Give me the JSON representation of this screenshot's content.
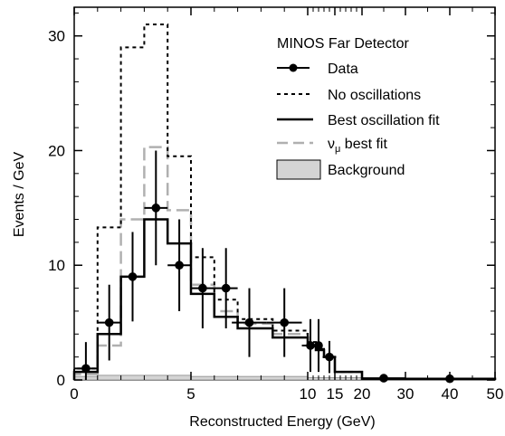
{
  "chart_data": {
    "type": "histogram",
    "title": "",
    "xlabel": "Reconstructed Energy (GeV)",
    "ylabel": "Events / GeV",
    "ylim": [
      0,
      32.5
    ],
    "x_axis_note": "non-linear axis: linear 0-5 GeV then compressed to 50 GeV",
    "x_ticks": [
      {
        "label": "0",
        "value": 0
      },
      {
        "label": "5",
        "value": 5
      },
      {
        "label": "10",
        "value": 10
      },
      {
        "label": "15",
        "value": 15
      },
      {
        "label": "20",
        "value": 20
      },
      {
        "label": "30",
        "value": 30
      },
      {
        "label": "40",
        "value": 40
      },
      {
        "label": "50",
        "value": 50
      }
    ],
    "y_ticks": [
      {
        "label": "0",
        "value": 0
      },
      {
        "label": "10",
        "value": 10
      },
      {
        "label": "20",
        "value": 20
      },
      {
        "label": "30",
        "value": 30
      }
    ],
    "legend": {
      "title": "MINOS Far Detector",
      "placement": "top-right",
      "entries": [
        {
          "name": "Data",
          "style": "points"
        },
        {
          "name": "No oscillations",
          "style": "dotted"
        },
        {
          "name": "Best oscillation fit",
          "style": "solid"
        },
        {
          "name_main": "ν",
          "name_sub": "μ",
          "name_rest": " best fit",
          "style": "dashed-gray"
        },
        {
          "name": "Background",
          "style": "filled-box"
        }
      ]
    },
    "data_points": [
      {
        "x": 0.5,
        "y": 1.0,
        "err": 2.3,
        "xerr": 0.5
      },
      {
        "x": 1.5,
        "y": 5.0,
        "err": 3.3,
        "xerr": 0.5
      },
      {
        "x": 2.5,
        "y": 9.0,
        "err": 3.9,
        "xerr": 0.5
      },
      {
        "x": 3.5,
        "y": 15.0,
        "err": 5.0,
        "xerr": 0.5
      },
      {
        "x": 4.5,
        "y": 10.0,
        "err": 4.0,
        "xerr": 0.5
      },
      {
        "x": 5.5,
        "y": 8.0,
        "err": 3.5,
        "xerr": 0.5
      },
      {
        "x": 6.5,
        "y": 8.0,
        "err": 3.5,
        "xerr": 0.5
      },
      {
        "x": 7.5,
        "y": 5.0,
        "err": 3.0,
        "xerr": 0.75
      },
      {
        "x": 9.0,
        "y": 5.0,
        "err": 3.0,
        "xerr": 0.75
      },
      {
        "x": 10.5,
        "y": 3.0,
        "err": 2.3,
        "xerr": 0.75
      },
      {
        "x": 12.0,
        "y": 3.0,
        "err": 2.3,
        "xerr": 0.75
      },
      {
        "x": 14.0,
        "y": 2.0,
        "err": 1.4,
        "xerr": 1.25
      },
      {
        "x": 25.0,
        "y": 0.15,
        "err": 0.0,
        "xerr": 5.0
      },
      {
        "x": 40.0,
        "y": 0.1,
        "err": 0.0,
        "xerr": 5.0
      }
    ],
    "no_oscillations": {
      "bins": [
        {
          "x0": 0,
          "x1": 1,
          "y": 1.0
        },
        {
          "x0": 1,
          "x1": 2,
          "y": 13.3
        },
        {
          "x0": 2,
          "x1": 3,
          "y": 29.0
        },
        {
          "x0": 3,
          "x1": 4,
          "y": 31.0
        },
        {
          "x0": 4,
          "x1": 5,
          "y": 19.5
        },
        {
          "x0": 5,
          "x1": 6,
          "y": 10.7
        },
        {
          "x0": 6,
          "x1": 7,
          "y": 7.0
        },
        {
          "x0": 7,
          "x1": 8.5,
          "y": 5.3
        },
        {
          "x0": 8.5,
          "x1": 10,
          "y": 4.3
        },
        {
          "x0": 10,
          "x1": 11.5,
          "y": 3.3
        },
        {
          "x0": 11.5,
          "x1": 13,
          "y": 2.7
        },
        {
          "x0": 13,
          "x1": 15,
          "y": 2.0
        },
        {
          "x0": 15,
          "x1": 20,
          "y": 0.7
        },
        {
          "x0": 20,
          "x1": 50,
          "y": 0.1
        }
      ]
    },
    "best_fit": {
      "bins": [
        {
          "x0": 0,
          "x1": 1,
          "y": 0.7
        },
        {
          "x0": 1,
          "x1": 2,
          "y": 4.0
        },
        {
          "x0": 2,
          "x1": 3,
          "y": 9.0
        },
        {
          "x0": 3,
          "x1": 4,
          "y": 14.0
        },
        {
          "x0": 4,
          "x1": 5,
          "y": 11.9
        },
        {
          "x0": 5,
          "x1": 6,
          "y": 7.5
        },
        {
          "x0": 6,
          "x1": 7,
          "y": 5.5
        },
        {
          "x0": 7,
          "x1": 8.5,
          "y": 4.5
        },
        {
          "x0": 8.5,
          "x1": 10,
          "y": 3.7
        },
        {
          "x0": 10,
          "x1": 11.5,
          "y": 3.0
        },
        {
          "x0": 11.5,
          "x1": 13,
          "y": 2.6
        },
        {
          "x0": 13,
          "x1": 15,
          "y": 2.0
        },
        {
          "x0": 15,
          "x1": 20,
          "y": 0.7
        },
        {
          "x0": 20,
          "x1": 50,
          "y": 0.1
        }
      ]
    },
    "numu_best_fit": {
      "bins": [
        {
          "x0": 0,
          "x1": 1,
          "y": 0.5
        },
        {
          "x0": 1,
          "x1": 2,
          "y": 3.0
        },
        {
          "x0": 2,
          "x1": 3,
          "y": 14.0
        },
        {
          "x0": 3,
          "x1": 4,
          "y": 20.3
        },
        {
          "x0": 4,
          "x1": 5,
          "y": 14.8
        },
        {
          "x0": 5,
          "x1": 6,
          "y": 8.3
        },
        {
          "x0": 6,
          "x1": 7,
          "y": 6.0
        },
        {
          "x0": 7,
          "x1": 8.5,
          "y": 4.9
        },
        {
          "x0": 8.5,
          "x1": 10,
          "y": 4.0
        },
        {
          "x0": 10,
          "x1": 11.5,
          "y": 3.2
        },
        {
          "x0": 11.5,
          "x1": 13,
          "y": 2.7
        },
        {
          "x0": 13,
          "x1": 15,
          "y": 2.0
        },
        {
          "x0": 15,
          "x1": 20,
          "y": 0.7
        },
        {
          "x0": 20,
          "x1": 50,
          "y": 0.1
        }
      ]
    },
    "background": {
      "bins": [
        {
          "x0": 0,
          "x1": 1,
          "y": 0.3
        },
        {
          "x0": 1,
          "x1": 2,
          "y": 0.4
        },
        {
          "x0": 2,
          "x1": 5,
          "y": 0.4
        },
        {
          "x0": 5,
          "x1": 10,
          "y": 0.3
        },
        {
          "x0": 10,
          "x1": 20,
          "y": 0.2
        },
        {
          "x0": 20,
          "x1": 50,
          "y": 0.05
        }
      ]
    },
    "colors": {
      "data": "#000000",
      "no_oscillations": "#000000",
      "best_fit": "#000000",
      "numu_best_fit": "#b0b0b0",
      "background_fill": "#d4d4d4",
      "background_stroke": "#9a9a9a"
    }
  }
}
